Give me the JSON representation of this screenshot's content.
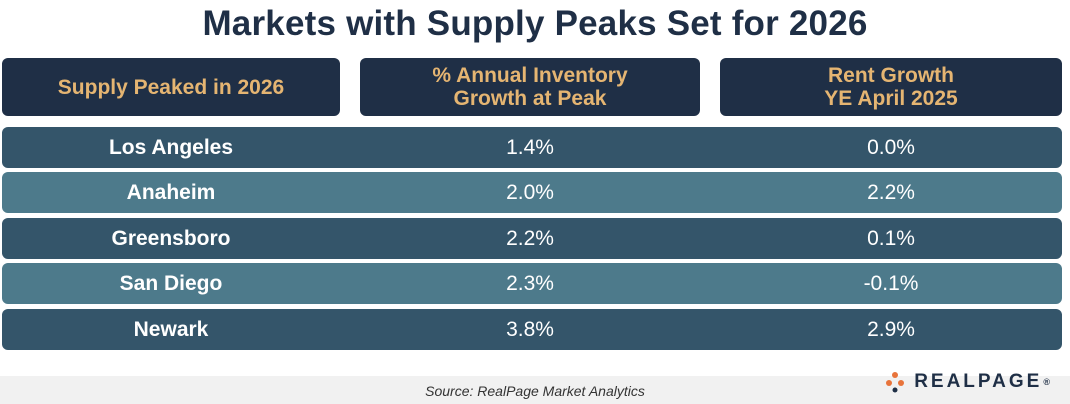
{
  "title": "Markets with Supply Peaks Set for 2026",
  "table": {
    "headers": [
      "Supply Peaked in 2026",
      "% Annual Inventory\nGrowth at Peak",
      "Rent Growth\nYE April 2025"
    ],
    "rows": [
      [
        "Los Angeles",
        "1.4%",
        "0.0%"
      ],
      [
        "Anaheim",
        "2.0%",
        "2.2%"
      ],
      [
        "Greensboro",
        "2.2%",
        "0.1%"
      ],
      [
        "San Diego",
        "2.3%",
        "-0.1%"
      ],
      [
        "Newark",
        "3.8%",
        "2.9%"
      ]
    ]
  },
  "footer": {
    "source": "Source: RealPage Market Analytics",
    "logo_text": "REALPAGE",
    "logo_mark": "®"
  },
  "colors": {
    "header_bg": "#1f2f46",
    "header_text": "#e5b572",
    "row_dark": "#34556a",
    "row_light": "#4d7a8b",
    "logo_accent": "#e8743b"
  }
}
